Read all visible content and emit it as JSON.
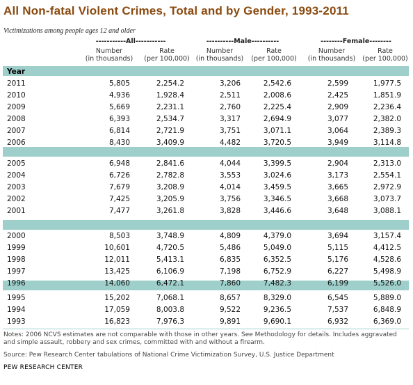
{
  "title": "All Non-fatal Violent Crimes, Total and by Gender, 1993-2011",
  "subtitle": "Victimizations among people ages 12 and older",
  "groups": [
    "-----------All-----------",
    "----------Male----------",
    "--------Female--------"
  ],
  "columns": [
    {
      "line1": "Number",
      "line2": "(in thousands)"
    },
    {
      "line1": "Rate",
      "line2": "(per 100,000)"
    },
    {
      "line1": "Number",
      "line2": "(in thousands)"
    },
    {
      "line1": "Rate",
      "line2": "(per 100,000)"
    },
    {
      "line1": "Number",
      "line2": "(in thousands)"
    },
    {
      "line1": "Rate",
      "line2": "(per 100,000)"
    }
  ],
  "year_header": "Year",
  "rows": [
    [
      "2011",
      "5,805",
      "2,254.2",
      "3,206",
      "2,542.6",
      "2,599",
      "1,977.5"
    ],
    [
      "2010",
      "4,936",
      "1,928.4",
      "2,511",
      "2,008.6",
      "2,425",
      "1,851.9"
    ],
    [
      "2009",
      "5,669",
      "2,231.1",
      "2,760",
      "2,225.4",
      "2,909",
      "2,236.4"
    ],
    [
      "2008",
      "6,393",
      "2,534.7",
      "3,317",
      "2,694.9",
      "3,077",
      "2,382.0"
    ],
    [
      "2007",
      "6,814",
      "2,721.9",
      "3,751",
      "3,071.1",
      "3,064",
      "2,389.3"
    ],
    [
      "2006",
      "8,430",
      "3,409.9",
      "4,482",
      "3,720.5",
      "3,949",
      "3,114.8"
    ],
    [
      "2005",
      "6,948",
      "2,841.6",
      "4,044",
      "3,399.5",
      "2,904",
      "2,313.0"
    ],
    [
      "2004",
      "6,726",
      "2,782.8",
      "3,553",
      "3,024.6",
      "3,173",
      "2,554.1"
    ],
    [
      "2003",
      "7,679",
      "3,208.9",
      "4,014",
      "3,459.5",
      "3,665",
      "2,972.9"
    ],
    [
      "2002",
      "7,425",
      "3,205.9",
      "3,756",
      "3,346.5",
      "3,668",
      "3,073.7"
    ],
    [
      "2001",
      "7,477",
      "3,261.8",
      "3,828",
      "3,446.6",
      "3,648",
      "3,088.1"
    ],
    [
      "2000",
      "8,503",
      "3,748.9",
      "4,809",
      "4,379.0",
      "3,694",
      "3,157.4"
    ],
    [
      "1999",
      "10,601",
      "4,720.5",
      "5,486",
      "5,049.0",
      "5,115",
      "4,412.5"
    ],
    [
      "1998",
      "12,011",
      "5,413.1",
      "6,835",
      "6,352.5",
      "5,176",
      "4,528.6"
    ],
    [
      "1997",
      "13,425",
      "6,106.9",
      "7,198",
      "6,752.9",
      "6,227",
      "5,498.9"
    ],
    [
      "1996",
      "14,060",
      "6,472.1",
      "7,860",
      "7,482.3",
      "6,199",
      "5,526.0"
    ],
    [
      "1995",
      "15,202",
      "7,068.1",
      "8,657",
      "8,329.0",
      "6,545",
      "5,889.0"
    ],
    [
      "1994",
      "17,059",
      "8,003.8",
      "9,522",
      "9,236.5",
      "7,537",
      "6,848.9"
    ],
    [
      "1993",
      "16,823",
      "7,976.3",
      "9,891",
      "9,690.1",
      "6,932",
      "6,369.0"
    ]
  ],
  "notes": "Notes: 2006 NCVS estimates are not comparable with those in other years. See Methodology for details. Includes aggravated and simple assault, robbery and sex crimes, committed with and without a firearm.",
  "source": "Source: Pew Research Center tabulations of National Crime Victimization Survey, U.S. Justice Department",
  "org": "PEW RESEARCH CENTER",
  "colors": {
    "title": "#8a4a0f",
    "band": "#9ecfcb"
  }
}
